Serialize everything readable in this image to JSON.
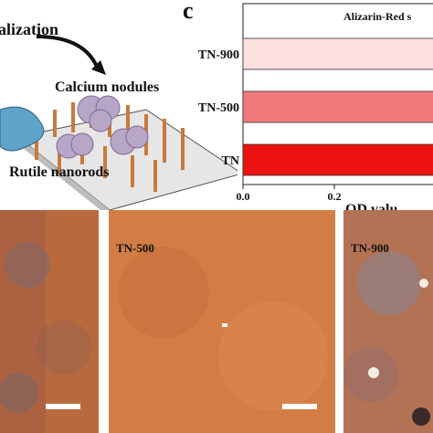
{
  "schematic": {
    "title_fragment": "alization",
    "nodules_label": "Calcium nodules",
    "nanorods_label": "Rutile nanorods"
  },
  "panel_letter": "c",
  "chart_data": {
    "type": "bar",
    "orientation": "horizontal",
    "title": "Alizarin-Red s",
    "categories": [
      "TN-900",
      "TN-500",
      "TN"
    ],
    "values": [
      0.72,
      0.78,
      0.82
    ],
    "colors": [
      "#fde0e0",
      "#f07a7a",
      "#ec1212"
    ],
    "xlabel": "OD valu",
    "xlim": [
      0.0,
      0.42
    ],
    "xticks": [
      "0.0",
      "0.2"
    ],
    "grid": false
  },
  "micrographs": [
    {
      "label": ""
    },
    {
      "label": "TN-500"
    },
    {
      "label": "TN-900"
    }
  ]
}
